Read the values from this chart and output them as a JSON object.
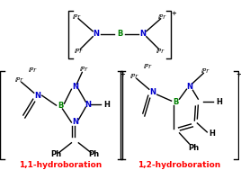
{
  "bg_color": "#ffffff",
  "N_color": "#0000cc",
  "B_color": "#008000",
  "black": "#000000",
  "red": "#ff0000",
  "label_11": "1,1-hydroboration",
  "label_12": "1,2-hydroboration",
  "plus": "+",
  "iPr": "iPr",
  "N": "N",
  "B": "B",
  "H": "H",
  "Ph": "Ph",
  "fs_base": 6.0,
  "fs_small": 5.0,
  "fs_label": 6.5
}
